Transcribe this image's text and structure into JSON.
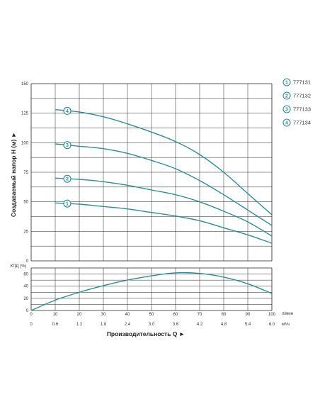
{
  "chart_data": [
    {
      "type": "line",
      "ylabel": "Создаваемый напор H (м) ►",
      "xlim": [
        0,
        100
      ],
      "ylim": [
        0,
        150
      ],
      "yticks": [
        "0",
        "25",
        "50",
        "75",
        "100",
        "125",
        "150"
      ],
      "grid": true,
      "legend_position": "right",
      "colors": {
        "curve": "#2f8d97",
        "grid": "#222222"
      },
      "series": [
        {
          "name": "777131",
          "marker": "1",
          "marker_x": 15,
          "x": [
            10,
            20,
            30,
            40,
            50,
            60,
            70,
            80,
            90,
            100
          ],
          "y": [
            49,
            48,
            46,
            44,
            41,
            38,
            34,
            28,
            22,
            15
          ]
        },
        {
          "name": "777132",
          "marker": "2",
          "marker_x": 15,
          "x": [
            10,
            20,
            30,
            40,
            50,
            60,
            70,
            80,
            90,
            100
          ],
          "y": [
            70,
            69,
            67,
            64,
            60,
            56,
            50,
            42,
            33,
            21
          ]
        },
        {
          "name": "777133",
          "marker": "3",
          "marker_x": 15,
          "x": [
            10,
            20,
            30,
            40,
            50,
            60,
            70,
            80,
            90,
            100
          ],
          "y": [
            99,
            97,
            95,
            91,
            85,
            78,
            68,
            56,
            43,
            30
          ]
        },
        {
          "name": "777134",
          "marker": "4",
          "marker_x": 15,
          "x": [
            10,
            20,
            30,
            40,
            50,
            60,
            70,
            80,
            90,
            100
          ],
          "y": [
            128,
            126,
            122,
            116,
            109,
            101,
            90,
            75,
            57,
            39
          ]
        }
      ]
    },
    {
      "type": "line",
      "ylabel": "КПД (%)",
      "xlabel": "Производительность Q ►",
      "xlim": [
        0,
        100
      ],
      "ylim": [
        0,
        70
      ],
      "yticks": [
        "0",
        "20",
        "40",
        "60"
      ],
      "xticks_lmin": [
        "0",
        "10",
        "20",
        "30",
        "40",
        "50",
        "60",
        "70",
        "80",
        "90",
        "100"
      ],
      "xticks_m3h": [
        "0",
        "0.6",
        "1.2",
        "1.8",
        "2.4",
        "3.0",
        "3.6",
        "4.2",
        "4.8",
        "5.4",
        "6.0"
      ],
      "unit_lmin": "л/мин",
      "unit_m3h": "м³/ч",
      "grid": true,
      "series": [
        {
          "name": "",
          "x": [
            0,
            10,
            20,
            30,
            40,
            50,
            60,
            70,
            80,
            90,
            100
          ],
          "y": [
            0,
            17,
            30,
            41,
            50,
            57,
            62,
            61,
            55,
            44,
            28
          ]
        }
      ]
    }
  ]
}
